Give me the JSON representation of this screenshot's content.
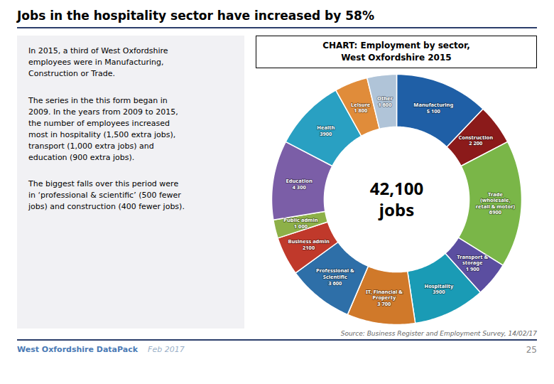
{
  "chart_data": {
    "type": "donut",
    "title": "Jobs in the hospitality sector have increased by 58%",
    "subtitle": "CHART: Employment by sector,\nWest Oxfordshire 2015",
    "categories": [
      "Manufacturing",
      "Construction",
      "Trade\n(wholesale,\nretail & motor)",
      "Transport &\nstorage",
      "Hospitality",
      "IT, Financial &\nProperty",
      "Professional &\nScientific",
      "Business admin",
      "Public admin",
      "Education",
      "Health",
      "Leisure",
      "Other"
    ],
    "values": [
      5100,
      2200,
      6900,
      1900,
      3900,
      3700,
      3600,
      2100,
      1000,
      4300,
      3900,
      1800,
      1600
    ],
    "value_labels": [
      "5 100",
      "2 200",
      "6900",
      "1 900",
      "3900",
      "3 700",
      "3 600",
      "2100",
      "1 000",
      "4 300",
      "3900",
      "1 800",
      "1 600"
    ],
    "colors": [
      "#1f5fa6",
      "#8b1a1a",
      "#7ab648",
      "#5b4ea0",
      "#1a9bb5",
      "#d0792a",
      "#2e6fa8",
      "#c0392b",
      "#8db048",
      "#7b5ea7",
      "#29a0c2",
      "#e08c3a",
      "#b0c4d8"
    ],
    "data_labels": true,
    "center_label": [
      "42,100",
      "jobs"
    ],
    "text": [
      "In 2015, a third of West Oxfordshire\nemployees were in Manufacturing,\nConstruction or Trade.",
      "The series in the this form began in\n2009.  In the years from 2009 to 2015,\nthe number of employees increased\nmost in hospitality (1,500 extra jobs),\ntransport (1,000 extra jobs) and\neducation (900 extra jobs).",
      "The biggest falls over this period were\nin ‘professional & scientific’ (500 fewer\njobs) and construction (400 fewer jobs)."
    ],
    "source": "Source: Business Register and Employment Survey, 14/02/17",
    "footer": [
      "West Oxfordshire DataPack",
      "Feb 2017",
      "25"
    ]
  }
}
